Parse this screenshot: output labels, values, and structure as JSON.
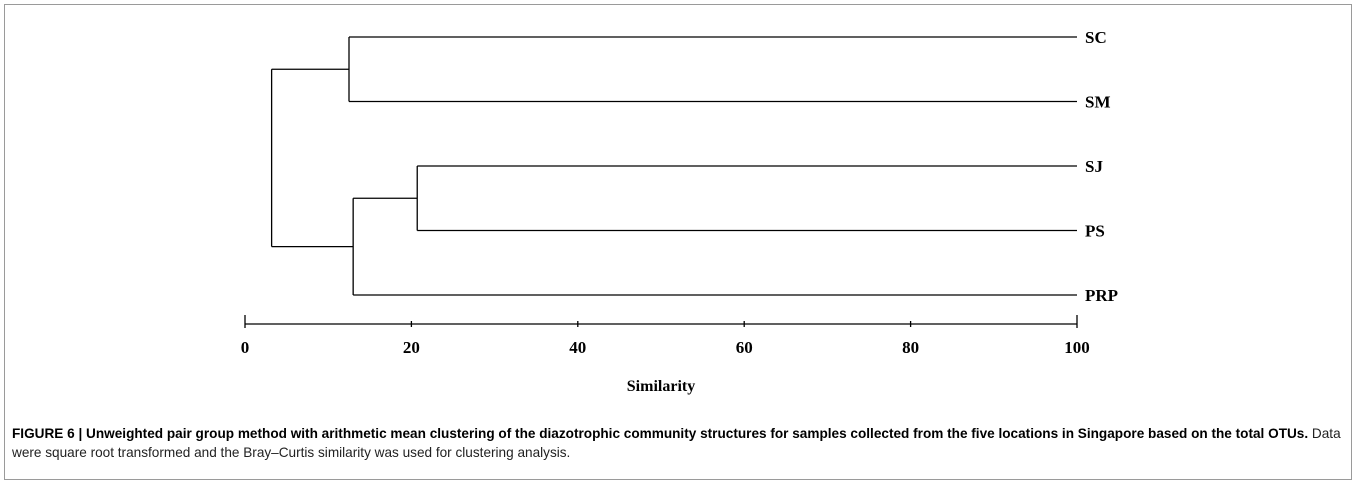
{
  "chart_data": {
    "type": "dendrogram",
    "xlabel": "Similarity",
    "xlim": [
      0,
      100
    ],
    "ticks": [
      0,
      20,
      40,
      60,
      80,
      100
    ],
    "leaves": [
      "SC",
      "SM",
      "SJ",
      "PS",
      "PRP"
    ],
    "merges": [
      {
        "id": "SC_SM",
        "children": [
          "SC",
          "SM"
        ],
        "similarity": 12.5
      },
      {
        "id": "SJ_PS",
        "children": [
          "SJ",
          "PS"
        ],
        "similarity": 20.7
      },
      {
        "id": "SJPS_PRP",
        "children": [
          "SJ_PS",
          "PRP"
        ],
        "similarity": 13.0
      },
      {
        "id": "root",
        "children": [
          "SC_SM",
          "SJPS_PRP"
        ],
        "similarity": 3.2
      }
    ]
  },
  "caption": {
    "bold": "FIGURE 6 | Unweighted pair group method with arithmetic mean clustering of the diazotrophic community structures for samples collected from the five locations in Singapore based on the total OTUs.",
    "normal": " Data were square root transformed and the Bray–Curtis similarity was used for clustering analysis."
  }
}
